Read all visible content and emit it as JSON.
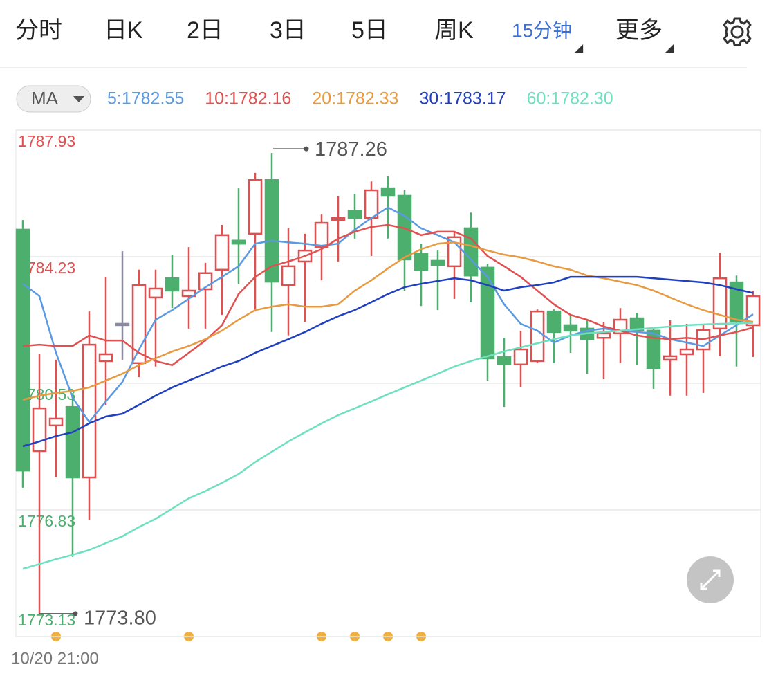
{
  "tabs": [
    "分时",
    "日K",
    "2日",
    "3日",
    "5日",
    "周K",
    "15分钟",
    "更多"
  ],
  "active_tab": 6,
  "indicator": "MA",
  "date_label": "10/20 21:00",
  "chart_data": {
    "type": "candlestick",
    "ylim": [
      1773.13,
      1787.93
    ],
    "yticks": [
      1787.93,
      1784.23,
      1780.53,
      1776.83,
      1773.13
    ],
    "ytick_colors": [
      "#e05050",
      "#e05050",
      "#4caf6e",
      "#4caf6e",
      "#4caf6e"
    ],
    "grid": true,
    "up_color": "#e05050",
    "down_color": "#4caf6e",
    "flat_color": "#8a8aa0",
    "candles": {
      "open": [
        1785.02,
        1778.55,
        1779.3,
        1779.84,
        1777.78,
        1781.18,
        1782.27,
        1781.12,
        1783.04,
        1783.6,
        1783.08,
        1783.28,
        1783.85,
        1784.7,
        1784.9,
        1786.47,
        1783.4,
        1784.09,
        1784.51,
        1785.3,
        1785.57,
        1785.36,
        1786.23,
        1786.01,
        1784.31,
        1784.11,
        1783.95,
        1785.06,
        1783.91,
        1781.3,
        1781.08,
        1781.18,
        1782.63,
        1782.23,
        1782.13,
        1781.86,
        1781.99,
        1782.43,
        1782.07,
        1781.22,
        1781.38,
        1781.52,
        1782.13,
        1783.48,
        1782.23
      ],
      "high": [
        1785.3,
        1781.38,
        1781.22,
        1780.21,
        1782.63,
        1783.64,
        1784.39,
        1783.85,
        1783.85,
        1784.29,
        1784.51,
        1784.05,
        1785.16,
        1786.23,
        1786.68,
        1787.26,
        1785.06,
        1784.9,
        1785.46,
        1786.01,
        1786.07,
        1786.43,
        1786.58,
        1786.17,
        1784.61,
        1784.41,
        1784.96,
        1785.52,
        1784.01,
        1781.86,
        1782.07,
        1782.69,
        1782.69,
        1782.53,
        1782.39,
        1782.33,
        1782.73,
        1782.59,
        1782.13,
        1782.37,
        1782.27,
        1782.23,
        1784.35,
        1783.68,
        1783.24
      ],
      "low": [
        1777.48,
        1773.8,
        1777.78,
        1775.46,
        1776.53,
        1779.9,
        1781.22,
        1780.71,
        1781.02,
        1782.73,
        1782.13,
        1782.13,
        1782.53,
        1783.44,
        1782.63,
        1782.03,
        1781.93,
        1782.33,
        1783.54,
        1784.09,
        1784.76,
        1784.25,
        1784.76,
        1783.24,
        1782.79,
        1782.67,
        1783.0,
        1782.9,
        1780.61,
        1779.84,
        1780.41,
        1781.12,
        1781.12,
        1781.42,
        1780.81,
        1780.65,
        1781.12,
        1781.06,
        1780.37,
        1780.17,
        1780.17,
        1780.25,
        1781.32,
        1781.02,
        1781.3
      ],
      "close": [
        1777.98,
        1779.8,
        1779.5,
        1777.78,
        1781.66,
        1781.38,
        1782.27,
        1783.4,
        1783.3,
        1783.24,
        1783.24,
        1783.75,
        1784.86,
        1784.61,
        1786.47,
        1783.5,
        1783.95,
        1784.41,
        1785.22,
        1785.36,
        1785.36,
        1786.17,
        1786.03,
        1784.15,
        1783.85,
        1783.99,
        1784.8,
        1783.68,
        1781.26,
        1781.08,
        1781.52,
        1782.63,
        1782.03,
        1782.07,
        1781.82,
        1781.99,
        1782.39,
        1782.09,
        1780.98,
        1781.32,
        1781.52,
        1782.09,
        1783.6,
        1782.33,
        1783.08
      ]
    },
    "series": [
      {
        "name": "5:1782.55",
        "color": "#5b9ae0",
        "values": [
          1783.44,
          1783.08,
          1781.42,
          1780.11,
          1779.4,
          1780.0,
          1780.57,
          1781.52,
          1782.39,
          1782.67,
          1783.0,
          1783.34,
          1783.64,
          1783.95,
          1784.61,
          1784.7,
          1784.65,
          1784.61,
          1784.55,
          1784.61,
          1785.02,
          1785.36,
          1785.67,
          1785.42,
          1785.06,
          1784.86,
          1784.65,
          1784.15,
          1783.64,
          1782.84,
          1782.27,
          1782.07,
          1781.72,
          1781.93,
          1782.07,
          1782.13,
          1782.07,
          1782.03,
          1781.99,
          1781.82,
          1781.72,
          1781.62,
          1781.93,
          1782.23,
          1782.55
        ]
      },
      {
        "name": "10:1782.16",
        "color": "#e05050",
        "values": [
          1781.62,
          1781.66,
          1781.62,
          1781.62,
          1781.93,
          1781.78,
          1781.78,
          1781.42,
          1781.18,
          1781.06,
          1781.42,
          1781.78,
          1782.23,
          1783.14,
          1783.64,
          1783.95,
          1784.09,
          1784.25,
          1784.45,
          1784.76,
          1784.96,
          1785.1,
          1785.16,
          1785.06,
          1784.86,
          1784.96,
          1784.96,
          1784.76,
          1784.25,
          1783.95,
          1783.64,
          1783.24,
          1782.84,
          1782.53,
          1782.39,
          1782.19,
          1782.07,
          1781.93,
          1781.86,
          1781.82,
          1781.86,
          1781.82,
          1781.93,
          1782.03,
          1782.16
        ]
      },
      {
        "name": "20:1782.33",
        "color": "#e89a40",
        "values": [
          1780.05,
          1780.17,
          1780.25,
          1780.31,
          1780.41,
          1780.61,
          1780.81,
          1781.06,
          1781.26,
          1781.46,
          1781.62,
          1781.82,
          1782.07,
          1782.39,
          1782.67,
          1782.77,
          1782.84,
          1782.77,
          1782.77,
          1782.84,
          1783.24,
          1783.54,
          1783.89,
          1784.21,
          1784.45,
          1784.61,
          1784.65,
          1784.55,
          1784.41,
          1784.29,
          1784.21,
          1784.09,
          1783.95,
          1783.85,
          1783.68,
          1783.6,
          1783.5,
          1783.4,
          1783.24,
          1783.04,
          1782.84,
          1782.67,
          1782.53,
          1782.39,
          1782.33
        ]
      },
      {
        "name": "30:1783.17",
        "color": "#2040c0",
        "values": [
          1778.69,
          1778.83,
          1778.99,
          1779.1,
          1779.36,
          1779.56,
          1779.64,
          1779.9,
          1780.17,
          1780.41,
          1780.61,
          1780.81,
          1781.02,
          1781.18,
          1781.42,
          1781.62,
          1781.82,
          1782.03,
          1782.27,
          1782.49,
          1782.67,
          1782.9,
          1783.14,
          1783.34,
          1783.44,
          1783.52,
          1783.6,
          1783.54,
          1783.4,
          1783.24,
          1783.34,
          1783.4,
          1783.48,
          1783.64,
          1783.64,
          1783.64,
          1783.64,
          1783.64,
          1783.6,
          1783.56,
          1783.52,
          1783.48,
          1783.4,
          1783.28,
          1783.17
        ]
      },
      {
        "name": "60:1782.30",
        "color": "#6ee0c0",
        "values": [
          1775.11,
          1775.25,
          1775.39,
          1775.52,
          1775.66,
          1775.86,
          1776.06,
          1776.33,
          1776.57,
          1776.87,
          1777.17,
          1777.38,
          1777.62,
          1777.88,
          1778.23,
          1778.53,
          1778.83,
          1779.1,
          1779.36,
          1779.6,
          1779.8,
          1780.0,
          1780.21,
          1780.41,
          1780.61,
          1780.81,
          1781.02,
          1781.18,
          1781.32,
          1781.46,
          1781.58,
          1781.7,
          1781.82,
          1781.93,
          1781.99,
          1782.03,
          1782.07,
          1782.11,
          1782.15,
          1782.19,
          1782.23,
          1782.25,
          1782.27,
          1782.28,
          1782.3
        ]
      }
    ],
    "max_annotation": 1787.26,
    "min_annotation": {
      "value": 1773.8,
      "label": "1773.80"
    }
  }
}
